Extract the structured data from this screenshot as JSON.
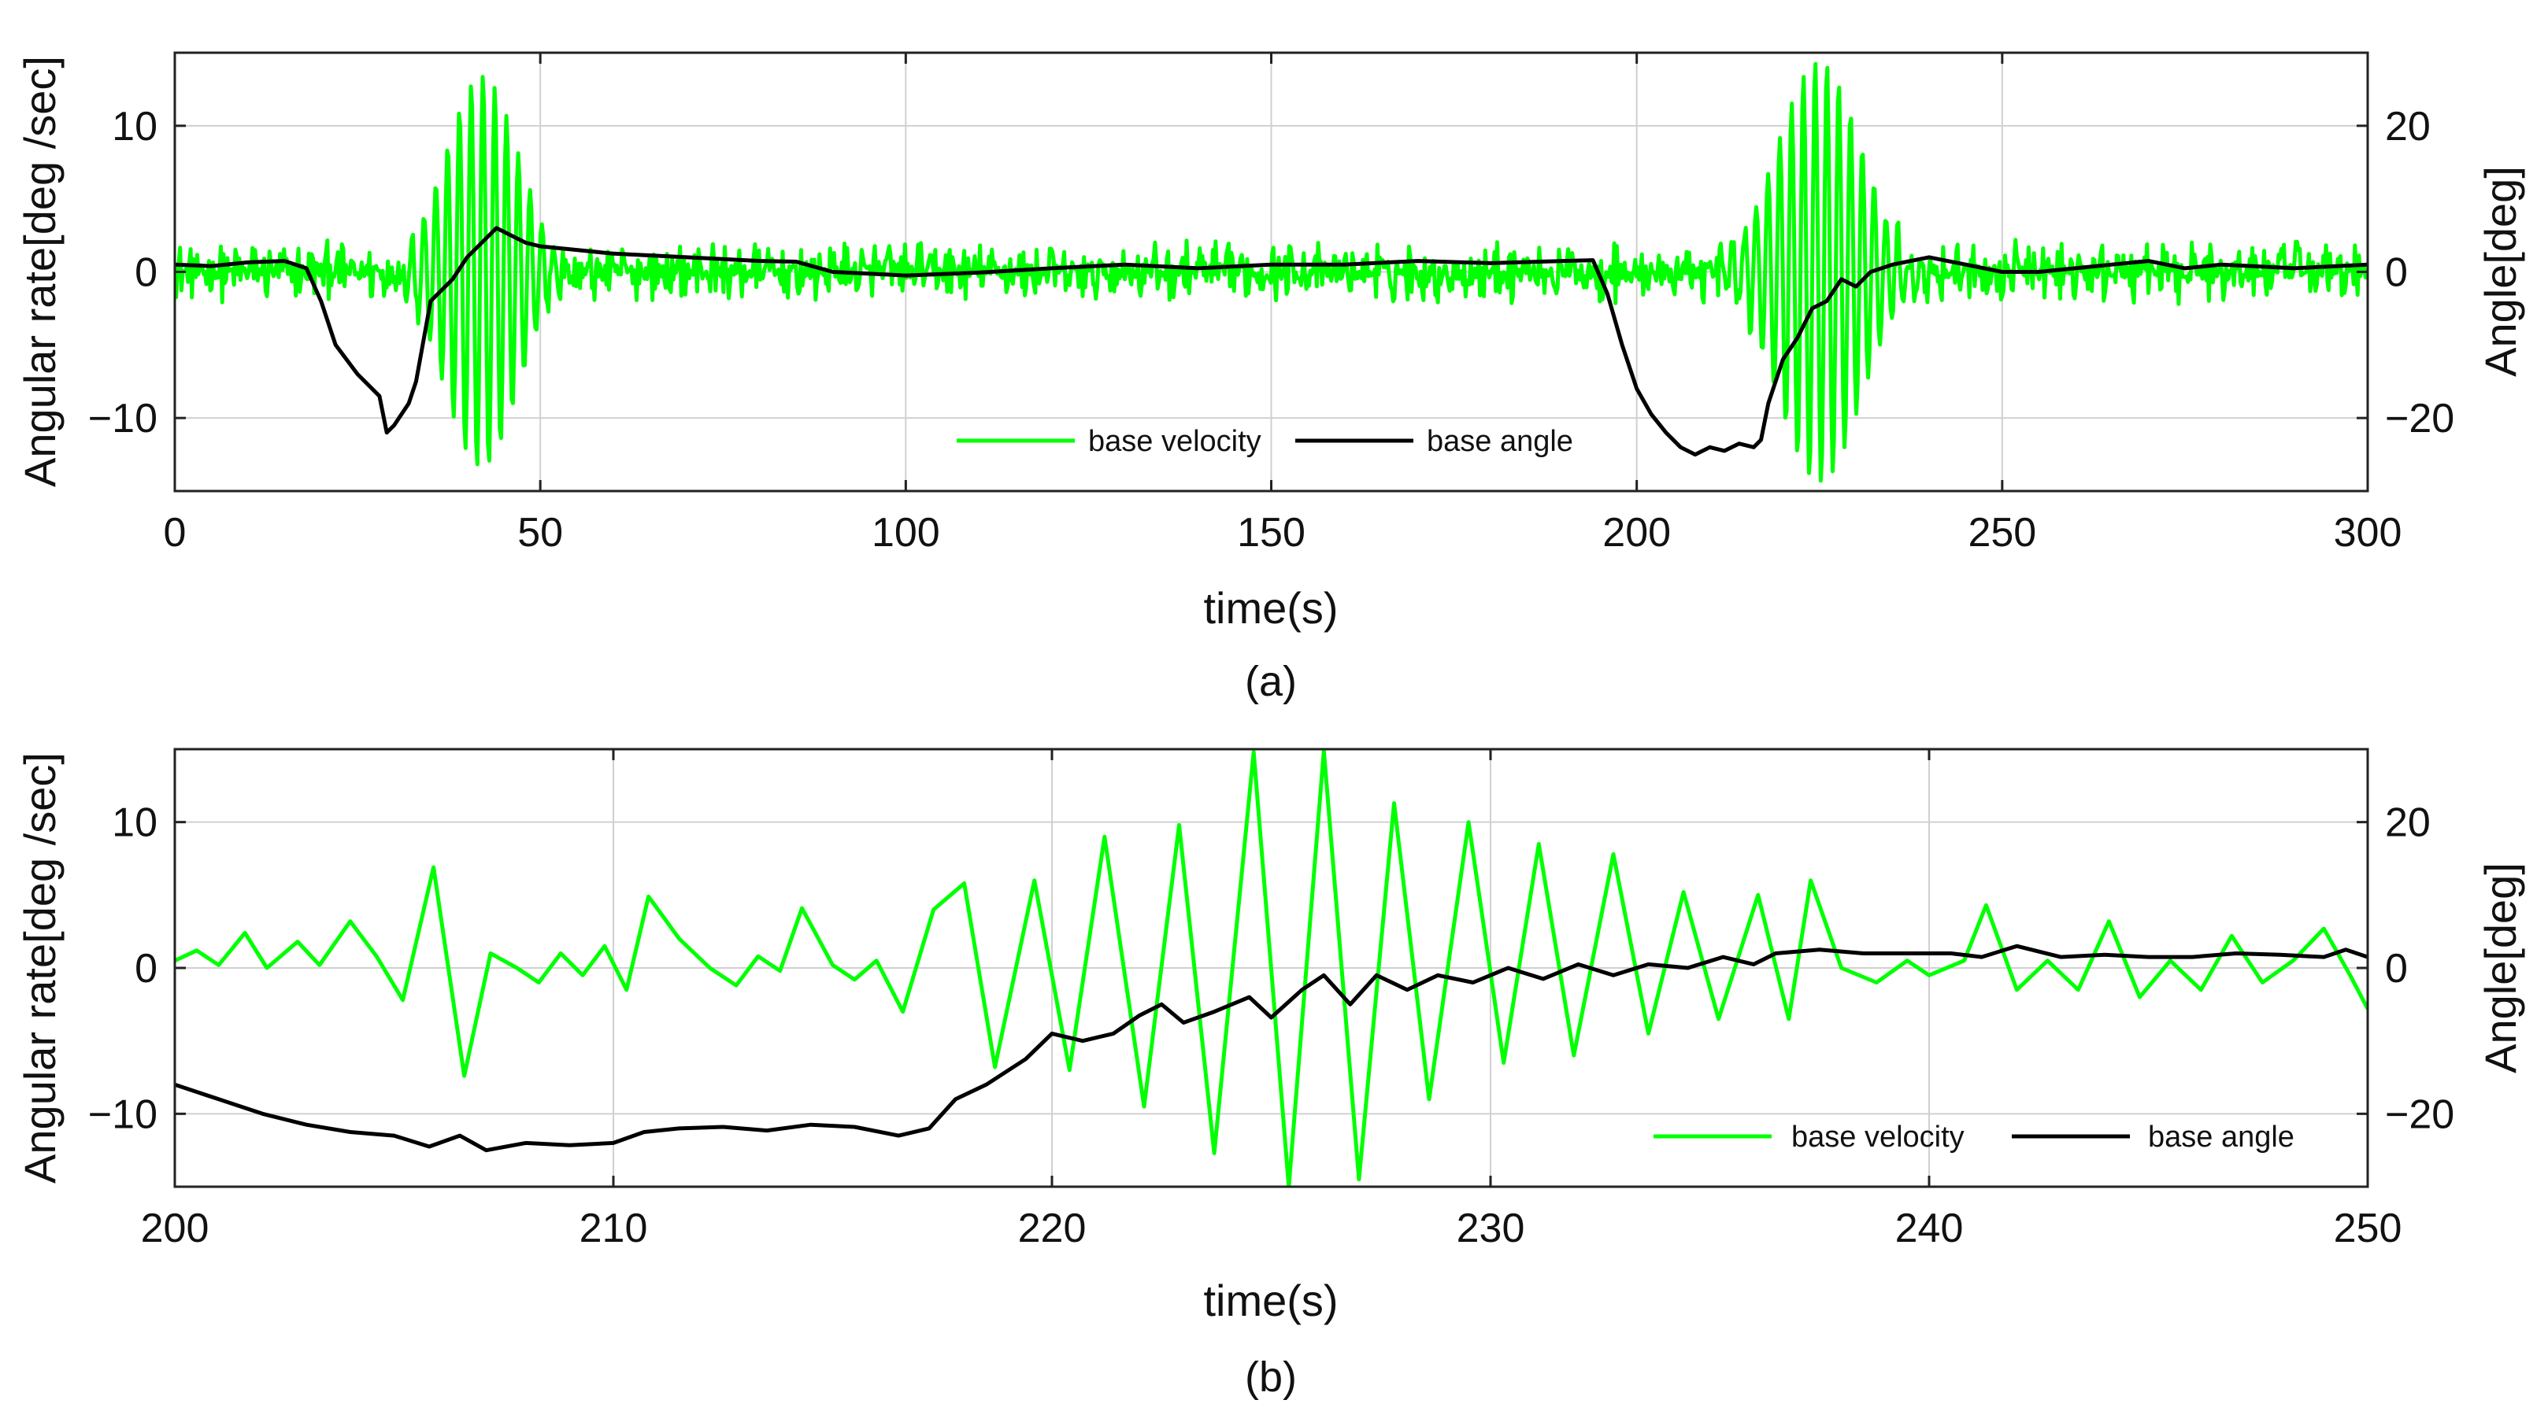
{
  "colors": {
    "velocity": "#00ff00",
    "angle": "#000000",
    "grid": "#d0d0d0",
    "frame": "#222222"
  },
  "chart_data": [
    {
      "type": "line",
      "caption": "(a)",
      "xlabel": "time(s)",
      "ylabel_left": "Angular rate[deg /sec]",
      "ylabel_right": "Angle[deg]",
      "xlim": [
        0,
        300
      ],
      "ylim_left": [
        -15,
        15
      ],
      "ylim_right": [
        -30,
        30
      ],
      "xticks": [
        0,
        50,
        100,
        150,
        200,
        250,
        300
      ],
      "yticks_left": [
        -10,
        0,
        10
      ],
      "yticks_left_labels": [
        "−10",
        "0",
        "10"
      ],
      "yticks_right": [
        -20,
        0,
        20
      ],
      "yticks_right_labels": [
        "−20",
        "0",
        "20"
      ],
      "grid": true,
      "legend": {
        "placement": "bottom-center",
        "entries": [
          "base velocity",
          "base angle"
        ]
      },
      "series": [
        {
          "name": "base velocity",
          "axis": "left",
          "model": "oscillation",
          "noise_amplitude": 2.2,
          "bursts": [
            {
              "center": 42,
              "width": 7,
              "amplitude": 13.5
            },
            {
              "center": 225,
              "width": 8,
              "amplitude": 14.5
            }
          ]
        },
        {
          "name": "base angle",
          "axis": "right",
          "points": [
            [
              0,
              1
            ],
            [
              5,
              0.8
            ],
            [
              10,
              1.3
            ],
            [
              15,
              1.5
            ],
            [
              18,
              0.5
            ],
            [
              20,
              -4
            ],
            [
              22,
              -10
            ],
            [
              25,
              -14
            ],
            [
              28,
              -17
            ],
            [
              29,
              -22
            ],
            [
              30,
              -21
            ],
            [
              32,
              -18
            ],
            [
              33,
              -15
            ],
            [
              35,
              -4
            ],
            [
              38,
              -1
            ],
            [
              40,
              2
            ],
            [
              42,
              4
            ],
            [
              44,
              6
            ],
            [
              46,
              5
            ],
            [
              48,
              4
            ],
            [
              50,
              3.5
            ],
            [
              55,
              3
            ],
            [
              60,
              2.5
            ],
            [
              70,
              2
            ],
            [
              80,
              1.5
            ],
            [
              85,
              1.4
            ],
            [
              90,
              0
            ],
            [
              100,
              -0.5
            ],
            [
              110,
              -0.1
            ],
            [
              120,
              0.5
            ],
            [
              130,
              1
            ],
            [
              140,
              0.5
            ],
            [
              150,
              1
            ],
            [
              160,
              1
            ],
            [
              170,
              1.5
            ],
            [
              180,
              1.2
            ],
            [
              190,
              1.5
            ],
            [
              194,
              1.6
            ],
            [
              196,
              -3
            ],
            [
              198,
              -10
            ],
            [
              200,
              -16
            ],
            [
              202,
              -19.5
            ],
            [
              204,
              -22
            ],
            [
              206,
              -24
            ],
            [
              208,
              -25
            ],
            [
              210,
              -24
            ],
            [
              212,
              -24.5
            ],
            [
              214,
              -23.5
            ],
            [
              216,
              -24
            ],
            [
              217,
              -23
            ],
            [
              218,
              -18
            ],
            [
              220,
              -12
            ],
            [
              222,
              -9
            ],
            [
              224,
              -5
            ],
            [
              226,
              -4
            ],
            [
              228,
              -1
            ],
            [
              230,
              -2
            ],
            [
              232,
              0
            ],
            [
              235,
              1
            ],
            [
              240,
              2
            ],
            [
              245,
              1
            ],
            [
              250,
              0
            ],
            [
              255,
              0
            ],
            [
              260,
              0.5
            ],
            [
              265,
              1
            ],
            [
              270,
              1.5
            ],
            [
              275,
              0.5
            ],
            [
              280,
              1
            ],
            [
              290,
              0.5
            ],
            [
              300,
              1
            ]
          ]
        }
      ]
    },
    {
      "type": "line",
      "caption": "(b)",
      "xlabel": "time(s)",
      "ylabel_left": "Angular rate[deg /sec]",
      "ylabel_right": "Angle[deg]",
      "xlim": [
        200,
        250
      ],
      "ylim_left": [
        -15,
        15
      ],
      "ylim_right": [
        -30,
        30
      ],
      "xticks": [
        200,
        210,
        220,
        230,
        240,
        250
      ],
      "yticks_left": [
        -10,
        0,
        10
      ],
      "yticks_left_labels": [
        "−10",
        "0",
        "10"
      ],
      "yticks_right": [
        -20,
        0,
        20
      ],
      "yticks_right_labels": [
        "−20",
        "0",
        "20"
      ],
      "grid": true,
      "legend": {
        "placement": "bottom-right",
        "entries": [
          "base velocity",
          "base angle"
        ]
      },
      "series": [
        {
          "name": "base velocity",
          "axis": "left",
          "points": [
            [
              200,
              0.5
            ],
            [
              200.5,
              1.2
            ],
            [
              201,
              0.2
            ],
            [
              201.6,
              2.4
            ],
            [
              202.1,
              0
            ],
            [
              202.8,
              1.8
            ],
            [
              203.3,
              0.2
            ],
            [
              204,
              3.2
            ],
            [
              204.6,
              0.8
            ],
            [
              205.2,
              -2.2
            ],
            [
              205.9,
              6.9
            ],
            [
              206.6,
              -7.4
            ],
            [
              207.2,
              1
            ],
            [
              207.8,
              0
            ],
            [
              208.3,
              -1
            ],
            [
              208.8,
              1
            ],
            [
              209.3,
              -0.5
            ],
            [
              209.8,
              1.5
            ],
            [
              210.3,
              -1.5
            ],
            [
              210.8,
              4.9
            ],
            [
              211.5,
              2
            ],
            [
              212.2,
              0
            ],
            [
              212.8,
              -1.2
            ],
            [
              213.3,
              0.8
            ],
            [
              213.8,
              -0.2
            ],
            [
              214.3,
              4.1
            ],
            [
              215,
              0.2
            ],
            [
              215.5,
              -0.8
            ],
            [
              216,
              0.5
            ],
            [
              216.6,
              -3
            ],
            [
              217.3,
              4
            ],
            [
              218,
              5.8
            ],
            [
              218.7,
              -6.8
            ],
            [
              219.6,
              6
            ],
            [
              220.4,
              -7
            ],
            [
              221.2,
              9
            ],
            [
              222.1,
              -9.5
            ],
            [
              222.9,
              9.8
            ],
            [
              223.7,
              -12.7
            ],
            [
              224.6,
              14.8
            ],
            [
              225.4,
              -15
            ],
            [
              226.2,
              14.9
            ],
            [
              227,
              -14.5
            ],
            [
              227.8,
              11.3
            ],
            [
              228.6,
              -9
            ],
            [
              229.5,
              10
            ],
            [
              230.3,
              -6.5
            ],
            [
              231.1,
              8.5
            ],
            [
              231.9,
              -6
            ],
            [
              232.8,
              7.8
            ],
            [
              233.6,
              -4.5
            ],
            [
              234.4,
              5.2
            ],
            [
              235.2,
              -3.5
            ],
            [
              236.1,
              5
            ],
            [
              236.8,
              -3.5
            ],
            [
              237.3,
              6
            ],
            [
              238,
              0
            ],
            [
              238.8,
              -1
            ],
            [
              239.5,
              0.5
            ],
            [
              240,
              -0.5
            ],
            [
              240.8,
              0.5
            ],
            [
              241.3,
              4.3
            ],
            [
              242,
              -1.5
            ],
            [
              242.7,
              0.5
            ],
            [
              243.4,
              -1.5
            ],
            [
              244.1,
              3.2
            ],
            [
              244.8,
              -2
            ],
            [
              245.5,
              0.5
            ],
            [
              246.2,
              -1.5
            ],
            [
              246.9,
              2.2
            ],
            [
              247.6,
              -1
            ],
            [
              248.3,
              0.5
            ],
            [
              249,
              2.7
            ],
            [
              249.6,
              -0.5
            ],
            [
              250,
              -2.8
            ]
          ]
        },
        {
          "name": "base angle",
          "axis": "right",
          "points": [
            [
              200,
              -16
            ],
            [
              201,
              -18
            ],
            [
              202,
              -20
            ],
            [
              203,
              -21.5
            ],
            [
              204,
              -22.5
            ],
            [
              205,
              -23
            ],
            [
              205.8,
              -24.5
            ],
            [
              206.5,
              -23
            ],
            [
              207.1,
              -25
            ],
            [
              208,
              -24
            ],
            [
              209,
              -24.3
            ],
            [
              210,
              -24
            ],
            [
              210.7,
              -22.5
            ],
            [
              211.5,
              -22
            ],
            [
              212.5,
              -21.8
            ],
            [
              213.5,
              -22.3
            ],
            [
              214.5,
              -21.5
            ],
            [
              215.5,
              -21.8
            ],
            [
              216.5,
              -23
            ],
            [
              217.2,
              -22
            ],
            [
              217.8,
              -18
            ],
            [
              218.5,
              -16
            ],
            [
              219.4,
              -12.5
            ],
            [
              220,
              -9
            ],
            [
              220.7,
              -10
            ],
            [
              221.4,
              -9
            ],
            [
              222,
              -6.5
            ],
            [
              222.5,
              -5
            ],
            [
              223,
              -7.5
            ],
            [
              223.7,
              -6
            ],
            [
              224.5,
              -4
            ],
            [
              225,
              -6.8
            ],
            [
              225.7,
              -3
            ],
            [
              226.2,
              -1
            ],
            [
              226.8,
              -5
            ],
            [
              227.4,
              -1
            ],
            [
              228.1,
              -3
            ],
            [
              228.8,
              -1
            ],
            [
              229.6,
              -2
            ],
            [
              230.4,
              0
            ],
            [
              231.2,
              -1.5
            ],
            [
              232,
              0.5
            ],
            [
              232.8,
              -1
            ],
            [
              233.6,
              0.5
            ],
            [
              234.5,
              0
            ],
            [
              235.3,
              1.5
            ],
            [
              236,
              0.5
            ],
            [
              236.5,
              2
            ],
            [
              237.5,
              2.5
            ],
            [
              238.5,
              2
            ],
            [
              239.5,
              2
            ],
            [
              240.5,
              2
            ],
            [
              241.2,
              1.5
            ],
            [
              242,
              3
            ],
            [
              243,
              1.5
            ],
            [
              244,
              1.8
            ],
            [
              245,
              1.5
            ],
            [
              246,
              1.5
            ],
            [
              247,
              2
            ],
            [
              248,
              1.8
            ],
            [
              249,
              1.5
            ],
            [
              249.5,
              2.5
            ],
            [
              250,
              1.5
            ]
          ]
        }
      ]
    }
  ]
}
